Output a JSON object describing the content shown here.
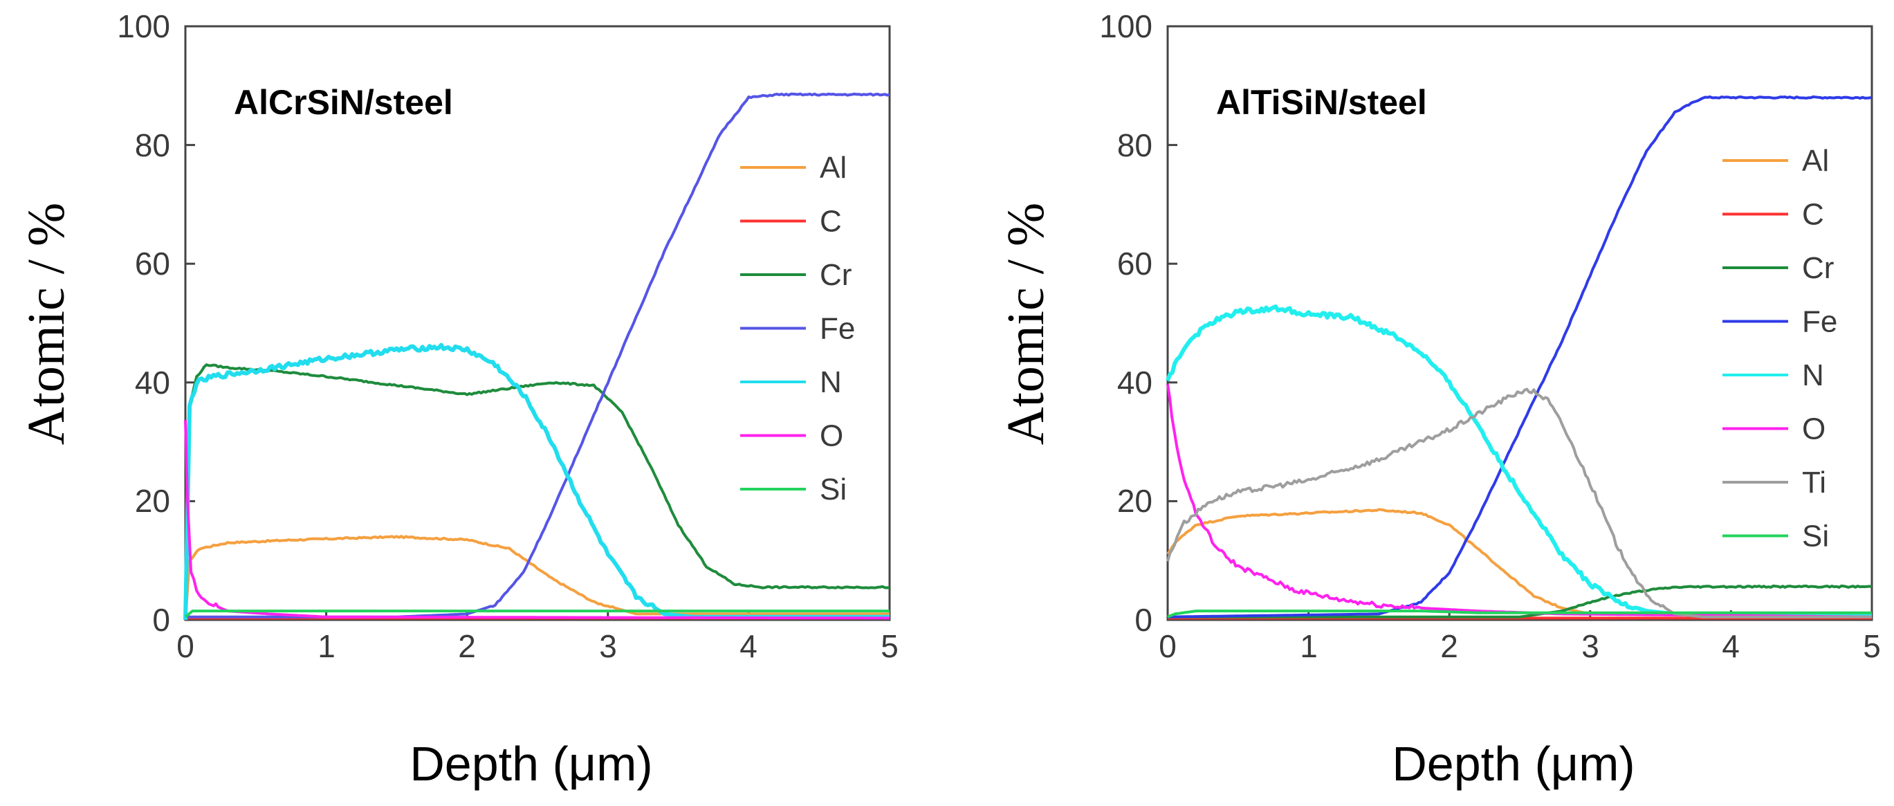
{
  "chart_data": [
    {
      "type": "line",
      "title": "AlCrSiN/steel",
      "xlabel": "Depth (μm)",
      "ylabel": "Atomic / %",
      "xlim": [
        0,
        5
      ],
      "ylim": [
        0,
        100
      ],
      "xticks": [
        "0",
        "1",
        "2",
        "3",
        "4",
        "5"
      ],
      "yticks": [
        "0",
        "20",
        "40",
        "60",
        "80",
        "100"
      ],
      "legend_position": "right",
      "series": [
        {
          "name": "Al",
          "color": "#F5A040",
          "x": [
            0,
            0.03,
            0.1,
            0.3,
            0.8,
            1.5,
            2.0,
            2.3,
            2.6,
            2.9,
            3.2,
            3.5,
            4,
            5
          ],
          "y": [
            0,
            10,
            12,
            13,
            13.5,
            14,
            13.5,
            12,
            7,
            3,
            1,
            1,
            1,
            1
          ]
        },
        {
          "name": "C",
          "color": "#FF3030",
          "x": [
            0,
            5
          ],
          "y": [
            0.3,
            0.3
          ]
        },
        {
          "name": "Cr",
          "color": "#1E8C3C",
          "x": [
            0,
            0.03,
            0.08,
            0.15,
            0.3,
            0.6,
            1.0,
            1.5,
            2.0,
            2.3,
            2.6,
            2.9,
            3.1,
            3.3,
            3.5,
            3.7,
            3.9,
            4.1,
            5
          ],
          "y": [
            0,
            36,
            41,
            43,
            42.5,
            42,
            41,
            39.5,
            38,
            39,
            40,
            39.5,
            35,
            26,
            16,
            9,
            6,
            5.5,
            5.5
          ]
        },
        {
          "name": "Fe",
          "color": "#5555E6",
          "x": [
            0,
            1.5,
            2.0,
            2.2,
            2.4,
            2.6,
            2.8,
            3.0,
            3.2,
            3.4,
            3.6,
            3.8,
            4.0,
            4.2,
            5
          ],
          "y": [
            0.5,
            0.5,
            1,
            2.5,
            8,
            18,
            29,
            40,
            51,
            62,
            72,
            82,
            88,
            88.5,
            88.5
          ]
        },
        {
          "name": "N",
          "color": "#22DDEE",
          "x": [
            0,
            0.03,
            0.08,
            0.2,
            0.5,
            1.0,
            1.5,
            1.8,
            2.0,
            2.2,
            2.4,
            2.6,
            2.8,
            3.0,
            3.2,
            3.4,
            3.6,
            5
          ],
          "y": [
            0,
            36,
            40,
            41,
            42,
            44,
            45.5,
            46,
            45.5,
            43,
            38,
            30,
            20,
            11,
            4,
            1,
            0.5,
            0.5
          ]
        },
        {
          "name": "O",
          "color": "#FF22EE",
          "x": [
            0,
            0.015,
            0.04,
            0.08,
            0.15,
            0.3,
            0.6,
            1,
            5
          ],
          "y": [
            34,
            20,
            8,
            5,
            3,
            1.5,
            1,
            0.5,
            0.3
          ]
        },
        {
          "name": "Si",
          "color": "#22D45C",
          "x": [
            0,
            0.05,
            5
          ],
          "y": [
            0.5,
            1.5,
            1.5
          ]
        }
      ]
    },
    {
      "type": "line",
      "title": "AlTiSiN/steel",
      "xlabel": "Depth (μm)",
      "ylabel": "Atomic / %",
      "xlim": [
        0,
        5
      ],
      "ylim": [
        0,
        100
      ],
      "xticks": [
        "0",
        "1",
        "2",
        "3",
        "4",
        "5"
      ],
      "yticks": [
        "0",
        "20",
        "40",
        "60",
        "80",
        "100"
      ],
      "legend_position": "right",
      "series": [
        {
          "name": "Al",
          "color": "#F5A040",
          "x": [
            0,
            0.05,
            0.2,
            0.5,
            1.0,
            1.5,
            1.8,
            2.0,
            2.2,
            2.4,
            2.6,
            2.8,
            3.0,
            3.5,
            5
          ],
          "y": [
            11,
            13,
            16,
            17.5,
            18,
            18.5,
            18,
            16,
            12,
            8,
            4,
            2,
            1,
            1,
            1
          ]
        },
        {
          "name": "C",
          "color": "#FF3030",
          "x": [
            0,
            5
          ],
          "y": [
            0.3,
            0.3
          ]
        },
        {
          "name": "Cr",
          "color": "#1E8C3C",
          "x": [
            0,
            2.5,
            2.8,
            3.0,
            3.2,
            3.4,
            3.6,
            3.8,
            5
          ],
          "y": [
            0.5,
            0.5,
            1.5,
            3,
            4.2,
            5,
            5.5,
            5.6,
            5.6
          ]
        },
        {
          "name": "Fe",
          "color": "#2F3BE8",
          "x": [
            0,
            1.5,
            1.8,
            2.0,
            2.2,
            2.4,
            2.6,
            2.8,
            3.0,
            3.2,
            3.4,
            3.6,
            3.8,
            4.0,
            5
          ],
          "y": [
            0.5,
            1,
            3,
            8,
            17,
            27,
            37,
            47,
            58,
            69,
            79,
            85.5,
            88,
            88,
            88
          ]
        },
        {
          "name": "N",
          "color": "#22EEEE",
          "x": [
            0,
            0.05,
            0.15,
            0.3,
            0.5,
            0.8,
            1.0,
            1.3,
            1.6,
            1.8,
            2.0,
            2.2,
            2.4,
            2.6,
            2.8,
            3.0,
            3.2,
            3.4,
            3.6,
            5
          ],
          "y": [
            40,
            43,
            47,
            50,
            52,
            52.5,
            51.5,
            51,
            48,
            45,
            40,
            33,
            25,
            18,
            11,
            6,
            3,
            1.5,
            1,
            1
          ]
        },
        {
          "name": "O",
          "color": "#FF22EE",
          "x": [
            0,
            0.03,
            0.1,
            0.2,
            0.35,
            0.5,
            0.7,
            0.9,
            1.2,
            1.5,
            1.8,
            2.2,
            2.8,
            5
          ],
          "y": [
            40,
            34,
            25,
            18,
            12,
            9,
            7,
            5,
            3.5,
            2.5,
            2,
            1.5,
            1,
            0.5
          ]
        },
        {
          "name": "Ti",
          "color": "#9E9E9E",
          "x": [
            0,
            0.1,
            0.3,
            0.5,
            1.0,
            1.5,
            2.0,
            2.3,
            2.5,
            2.6,
            2.7,
            2.8,
            3.0,
            3.2,
            3.4,
            3.6,
            3.8,
            5
          ],
          "y": [
            10,
            16,
            20,
            21.5,
            23.5,
            27,
            32,
            36,
            38.5,
            38.5,
            37,
            33,
            23,
            12,
            4,
            1,
            0.5,
            0.5
          ]
        },
        {
          "name": "Si",
          "color": "#22D45C",
          "x": [
            0,
            0.05,
            0.2,
            1.8,
            2.2,
            5
          ],
          "y": [
            0.5,
            1,
            1.5,
            1.5,
            1.2,
            1.2
          ]
        }
      ]
    }
  ]
}
